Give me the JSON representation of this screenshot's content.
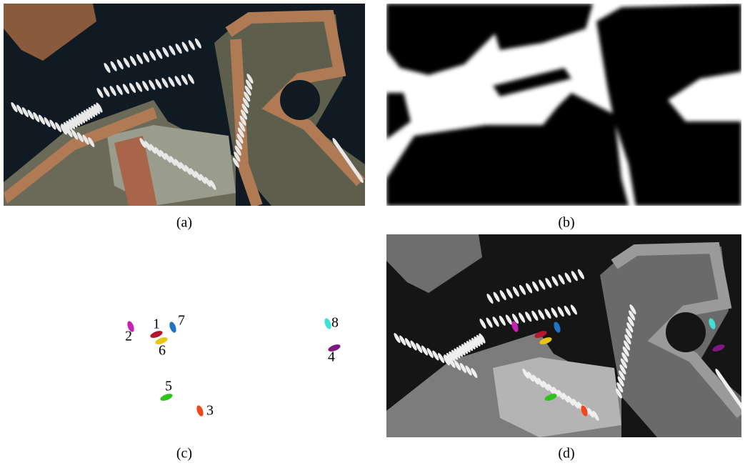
{
  "panels": [
    {
      "caption": "(a)"
    },
    {
      "caption": "(b)"
    },
    {
      "caption": "(c)"
    },
    {
      "caption": "(d)"
    }
  ],
  "objects": [
    {
      "label": "1",
      "color": "#b5162b"
    },
    {
      "label": "2",
      "color": "#c81fb4"
    },
    {
      "label": "3",
      "color": "#f0461e"
    },
    {
      "label": "4",
      "color": "#7d1a82"
    },
    {
      "label": "5",
      "color": "#2fc21f"
    },
    {
      "label": "6",
      "color": "#e8c417"
    },
    {
      "label": "7",
      "color": "#1f72c4"
    },
    {
      "label": "8",
      "color": "#3fe0d8"
    }
  ]
}
